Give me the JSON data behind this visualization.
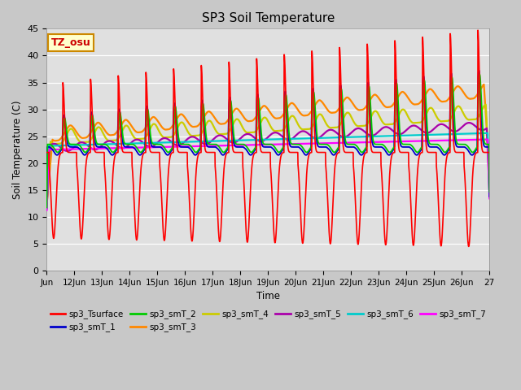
{
  "title": "SP3 Soil Temperature",
  "xlabel": "Time",
  "ylabel": "Soil Temperature (C)",
  "ylim": [
    0,
    45
  ],
  "tz_label": "TZ_osu",
  "plot_bg_color": "#e8e8e8",
  "series_colors": {
    "sp3_Tsurface": "#ff0000",
    "sp3_smT_1": "#0000cc",
    "sp3_smT_2": "#00cc00",
    "sp3_smT_3": "#ff8800",
    "sp3_smT_4": "#cccc00",
    "sp3_smT_5": "#aa00aa",
    "sp3_smT_6": "#00cccc",
    "sp3_smT_7": "#ff00ff"
  },
  "x_tick_labels": [
    "Jun",
    "12Jun",
    "13Jun",
    "14Jun",
    "15Jun",
    "16Jun",
    "17Jun",
    "18Jun",
    "19Jun",
    "20Jun",
    "21Jun",
    "22Jun",
    "23Jun",
    "24Jun",
    "25Jun",
    "26Jun",
    "27"
  ],
  "x_tick_positions": [
    0,
    1,
    2,
    3,
    4,
    5,
    6,
    7,
    8,
    9,
    10,
    11,
    12,
    13,
    14,
    15,
    16
  ],
  "y_ticks": [
    0,
    5,
    10,
    15,
    20,
    25,
    30,
    35,
    40,
    45
  ]
}
